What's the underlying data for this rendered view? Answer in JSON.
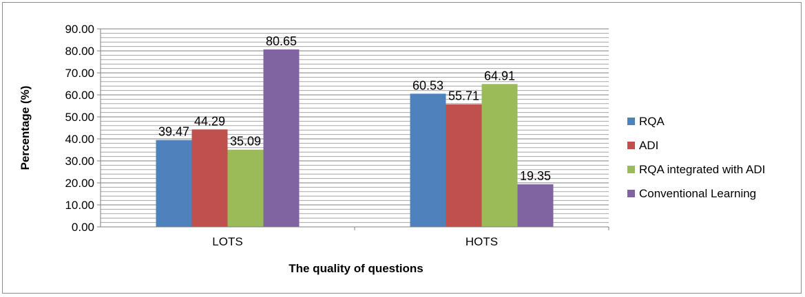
{
  "chart_data": {
    "type": "bar",
    "categories": [
      "LOTS",
      "HOTS"
    ],
    "series": [
      {
        "name": "RQA",
        "values": [
          39.47,
          60.53
        ],
        "color": "#4f81bd"
      },
      {
        "name": "ADI",
        "values": [
          44.29,
          55.71
        ],
        "color": "#c0504d"
      },
      {
        "name": "RQA integrated with ADI",
        "values": [
          35.09,
          64.91
        ],
        "color": "#9bbb59"
      },
      {
        "name": "Conventional Learning",
        "values": [
          80.65,
          19.35
        ],
        "color": "#8064a2"
      }
    ],
    "title": "",
    "xlabel": "The quality of questions",
    "ylabel": "Percentage (%)",
    "ylim": [
      0,
      90
    ],
    "yticks": [
      "0.00",
      "10.00",
      "20.00",
      "30.00",
      "40.00",
      "50.00",
      "60.00",
      "70.00",
      "80.00",
      "90.00"
    ],
    "grid": true,
    "legend": "right"
  }
}
